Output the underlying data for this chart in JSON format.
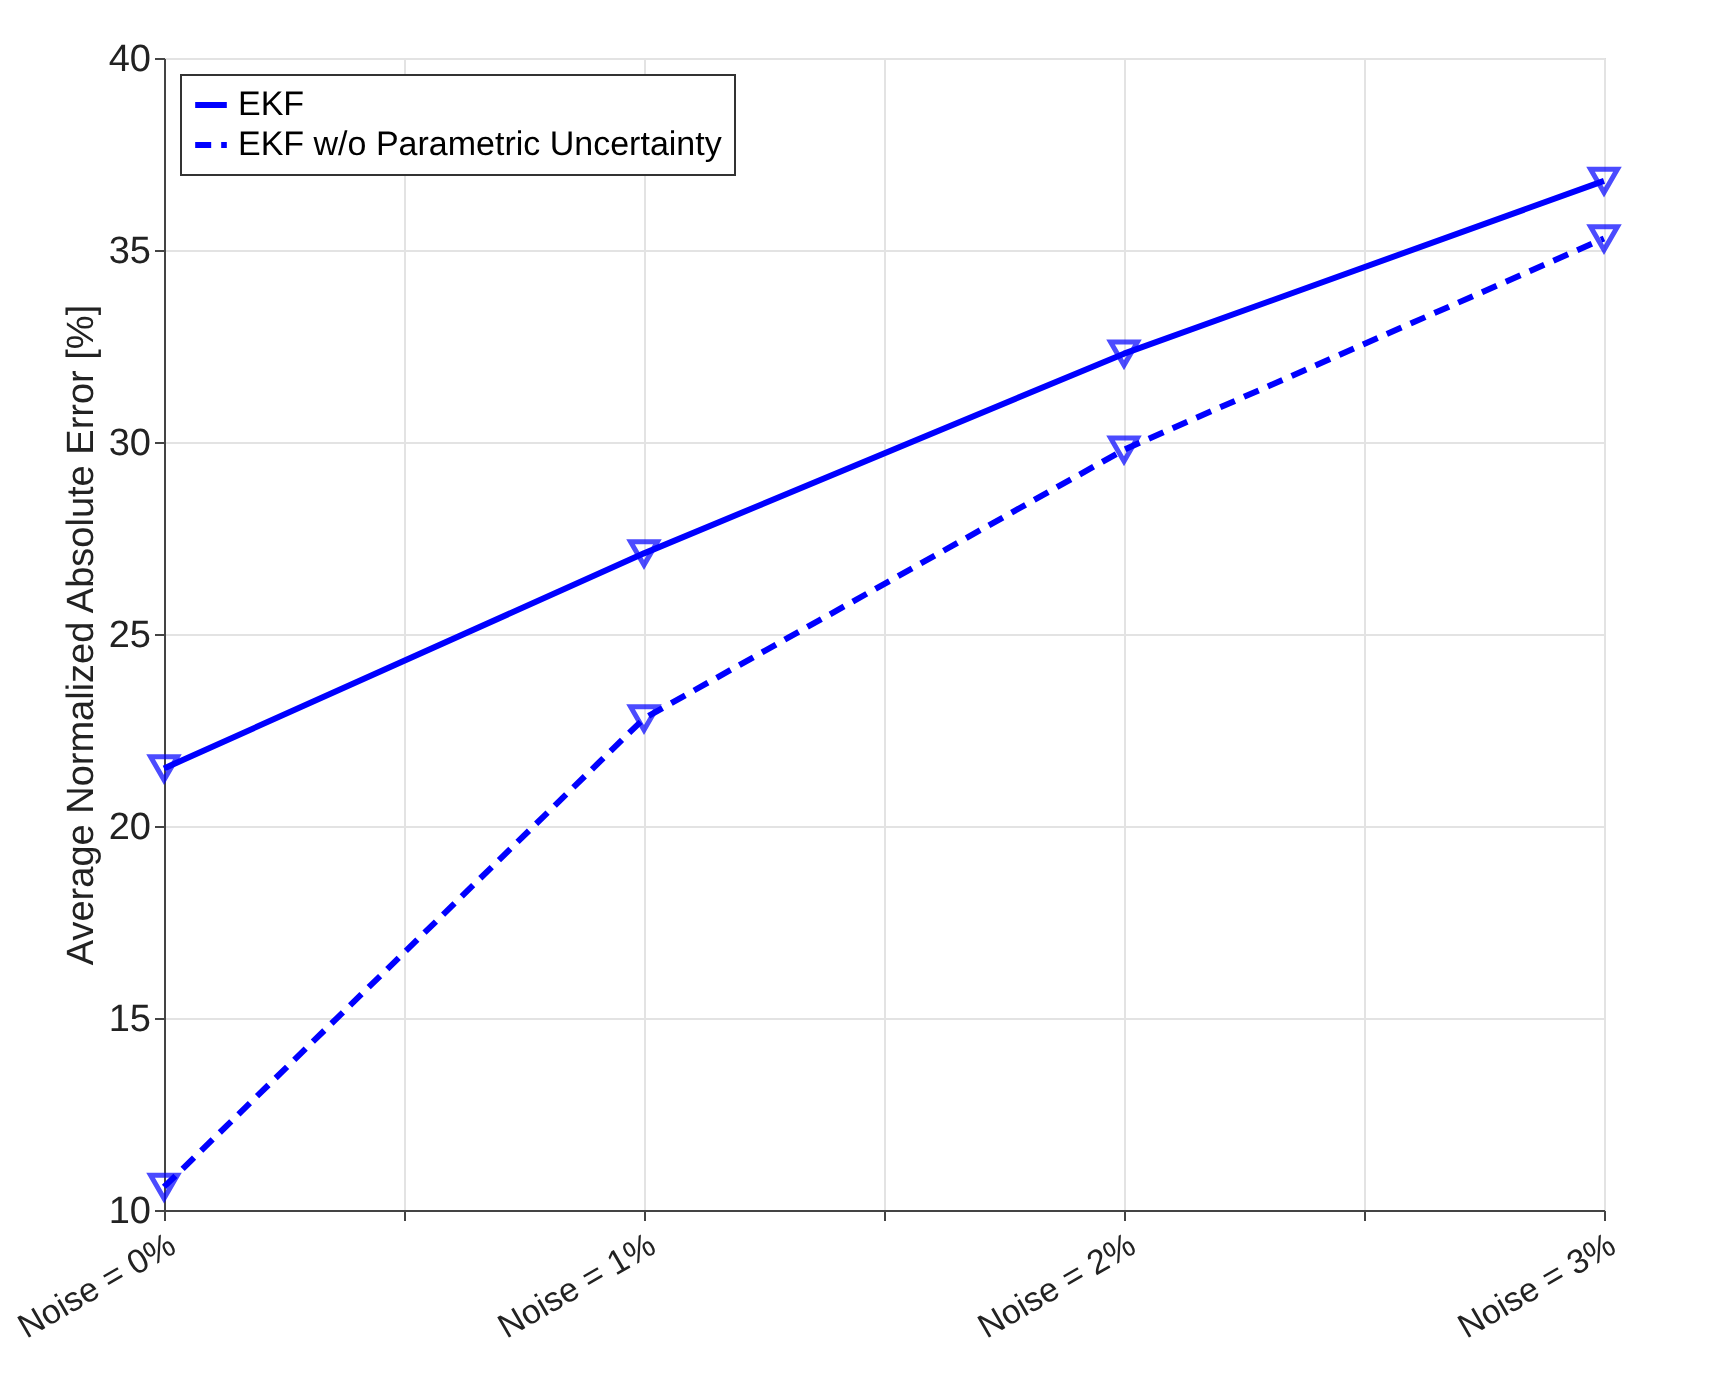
{
  "chart_data": {
    "type": "line",
    "ylabel": "Average Normalized Absolute Error [%]",
    "x": [
      0,
      1,
      2,
      3
    ],
    "xlim": [
      0,
      3
    ],
    "xticks": [
      {
        "value": 0,
        "label": "Noise = 0%"
      },
      {
        "value": 0.5,
        "label": null
      },
      {
        "value": 1,
        "label": "Noise = 1%"
      },
      {
        "value": 1.5,
        "label": null
      },
      {
        "value": 2,
        "label": "Noise = 2%"
      },
      {
        "value": 2.5,
        "label": null
      },
      {
        "value": 3,
        "label": "Noise = 3%"
      }
    ],
    "ylim": [
      10,
      40
    ],
    "yticks": [
      10,
      15,
      20,
      25,
      30,
      35,
      40
    ],
    "series": [
      {
        "name": "EKF",
        "color": "#0000ff",
        "line_style": "solid",
        "values": [
          21.5,
          27.1,
          32.3,
          36.8
        ]
      },
      {
        "name": "EKF w/o Parametric Uncertainty",
        "color": "#0000ff",
        "line_style": "dashed",
        "values": [
          10.6,
          22.8,
          29.8,
          35.3
        ]
      }
    ],
    "grid": true,
    "legend": "top left",
    "marker": "triangle"
  }
}
